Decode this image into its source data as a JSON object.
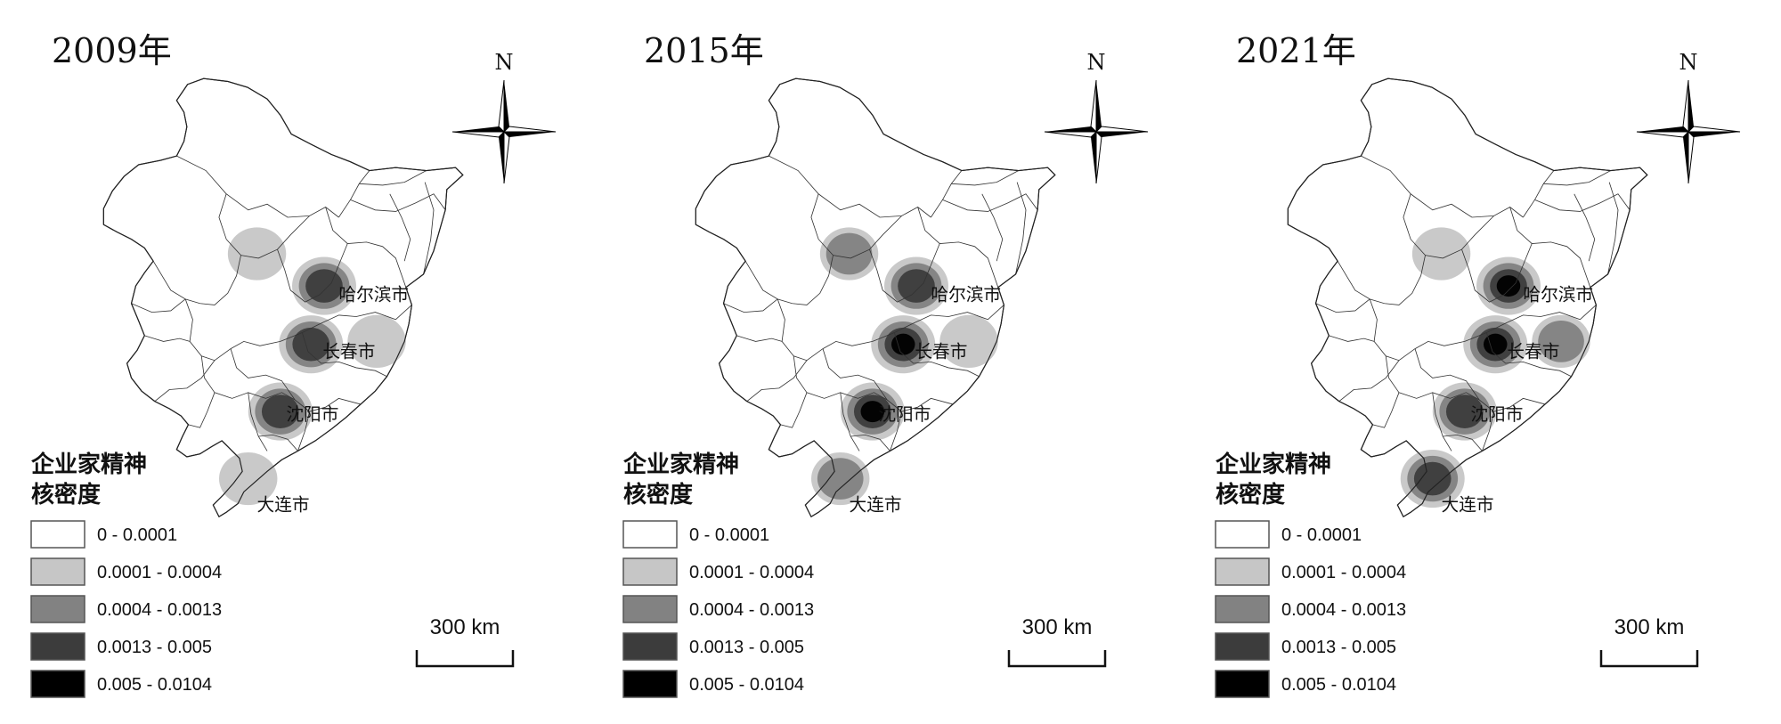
{
  "panels": [
    {
      "year": "2009年",
      "hotspots": [
        {
          "city": "harbin",
          "level": 3
        },
        {
          "city": "changchun",
          "level": 3
        },
        {
          "city": "shenyang",
          "level": 3
        },
        {
          "city": "qiqihar",
          "level": 1
        },
        {
          "city": "jilin",
          "level": 1
        },
        {
          "city": "dalian",
          "level": 1
        }
      ]
    },
    {
      "year": "2015年",
      "hotspots": [
        {
          "city": "harbin",
          "level": 3
        },
        {
          "city": "changchun",
          "level": 4
        },
        {
          "city": "shenyang",
          "level": 4
        },
        {
          "city": "qiqihar",
          "level": 2
        },
        {
          "city": "jilin",
          "level": 1
        },
        {
          "city": "dalian",
          "level": 2
        }
      ]
    },
    {
      "year": "2021年",
      "hotspots": [
        {
          "city": "harbin",
          "level": 4
        },
        {
          "city": "changchun",
          "level": 4
        },
        {
          "city": "shenyang",
          "level": 3
        },
        {
          "city": "qiqihar",
          "level": 1
        },
        {
          "city": "jilin",
          "level": 2
        },
        {
          "city": "dalian",
          "level": 3
        }
      ]
    }
  ],
  "cities": {
    "harbin": "哈尔滨市",
    "changchun": "长春市",
    "shenyang": "沈阳市",
    "dalian": "大连市"
  },
  "north_label": "N",
  "legend": {
    "title_line1": "企业家精神",
    "title_line2": "核密度",
    "classes": [
      {
        "label": "0 - 0.0001",
        "color": "#ffffff"
      },
      {
        "label": "0.0001 - 0.0004",
        "color": "#c6c6c6"
      },
      {
        "label": "0.0004 - 0.0013",
        "color": "#828282"
      },
      {
        "label": "0.0013 - 0.005",
        "color": "#3c3c3c"
      },
      {
        "label": "0.005 - 0.0104",
        "color": "#000000"
      }
    ]
  },
  "scale_bar": "300 km"
}
